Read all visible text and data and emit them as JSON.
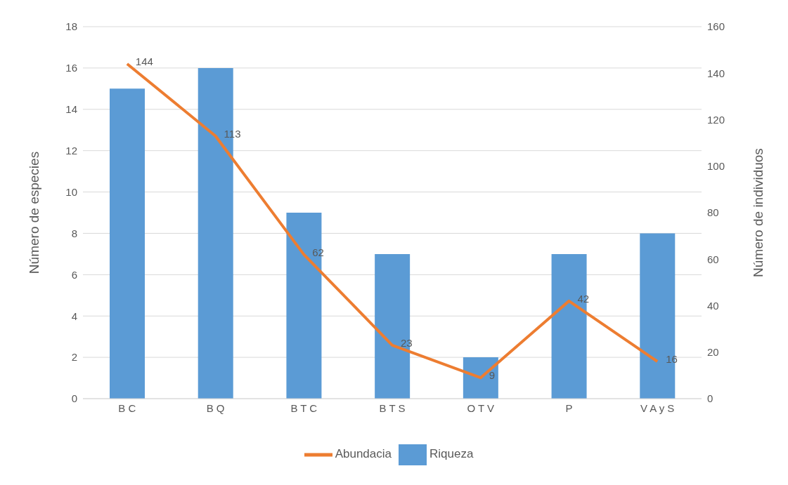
{
  "chart_data": {
    "type": "bar",
    "ylabel": "Número de especies",
    "y2label": "Número de individuos",
    "categories": [
      "B C",
      "B Q",
      "B T C",
      "B T S",
      "O T V",
      "P",
      "V A y S"
    ],
    "series": [
      {
        "name": "Riqueza",
        "color": "#5b9bd5",
        "values": [
          15,
          16,
          9,
          7,
          2,
          7,
          8
        ]
      },
      {
        "name": "Abundacia",
        "type": "line",
        "axis": "y2",
        "color": "#ed7d31",
        "values": [
          144,
          113,
          62,
          23,
          9,
          42,
          16
        ],
        "value_labels": [
          "144",
          "113",
          "62",
          "23",
          "9",
          "42",
          "16"
        ]
      }
    ],
    "ylim": [
      0,
      18
    ],
    "yticks": [
      0,
      2,
      4,
      6,
      8,
      10,
      12,
      14,
      16,
      18
    ],
    "y2lim": [
      0,
      160
    ],
    "y2ticks": [
      0,
      20,
      40,
      60,
      80,
      100,
      120,
      140,
      160
    ],
    "grid": "y",
    "legend": "bottom",
    "marker": "none",
    "line_style": "solid"
  }
}
